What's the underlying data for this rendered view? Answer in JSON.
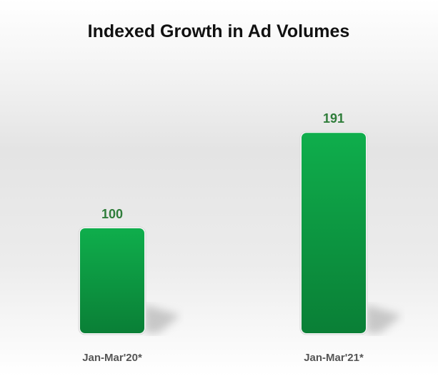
{
  "chart_data": {
    "type": "bar",
    "title": "Indexed Growth in Ad Volumes",
    "categories": [
      "Jan-Mar'20*",
      "Jan-Mar'21*"
    ],
    "values": [
      100,
      191
    ],
    "data_labels": [
      "100",
      "191"
    ],
    "xlabel": "",
    "ylabel": "",
    "ylim": [
      0,
      200
    ],
    "grid": false,
    "bar_color": "#0fa84a"
  }
}
